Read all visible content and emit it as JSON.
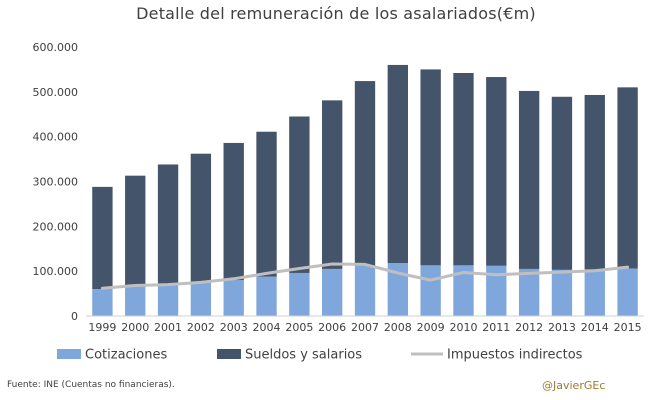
{
  "chart_data": {
    "type": "bar",
    "title": "Detalle del remuneración de los asalariados(€m)",
    "categories": [
      "1999",
      "2000",
      "2001",
      "2002",
      "2003",
      "2004",
      "2005",
      "2006",
      "2007",
      "2008",
      "2009",
      "2010",
      "2011",
      "2012",
      "2013",
      "2014",
      "2015"
    ],
    "series": [
      {
        "name": "Cotizaciones",
        "type": "bar",
        "stacked": true,
        "color": "#7fa7dc",
        "values": [
          60000,
          66000,
          70000,
          75000,
          80000,
          88000,
          96000,
          105000,
          112000,
          118000,
          113000,
          113000,
          112000,
          105000,
          103000,
          104000,
          106000
        ]
      },
      {
        "name": "Sueldos y salarios",
        "type": "bar",
        "stacked": true,
        "color": "#44546a",
        "values": [
          228000,
          247000,
          268000,
          287000,
          306000,
          323000,
          349000,
          376000,
          412000,
          442000,
          437000,
          429000,
          421000,
          397000,
          386000,
          389000,
          404000
        ]
      },
      {
        "name": "Impuestos indirectos",
        "type": "line",
        "color": "#bfbfbf",
        "values": [
          62000,
          68000,
          70000,
          75000,
          83000,
          95000,
          106000,
          116000,
          115000,
          96000,
          80000,
          97000,
          92000,
          95000,
          98000,
          101000,
          109000
        ]
      }
    ],
    "yticks": [
      "0",
      "100.000",
      "200.000",
      "300.000",
      "400.000",
      "500.000",
      "600.000"
    ],
    "ylim": [
      0,
      600000
    ],
    "xlabel": "",
    "ylabel": "",
    "grid": false,
    "legend_position": "bottom"
  },
  "footer": {
    "source": "Fuente: INE (Cuentas no financieras).",
    "author": "@JavierGEc"
  }
}
